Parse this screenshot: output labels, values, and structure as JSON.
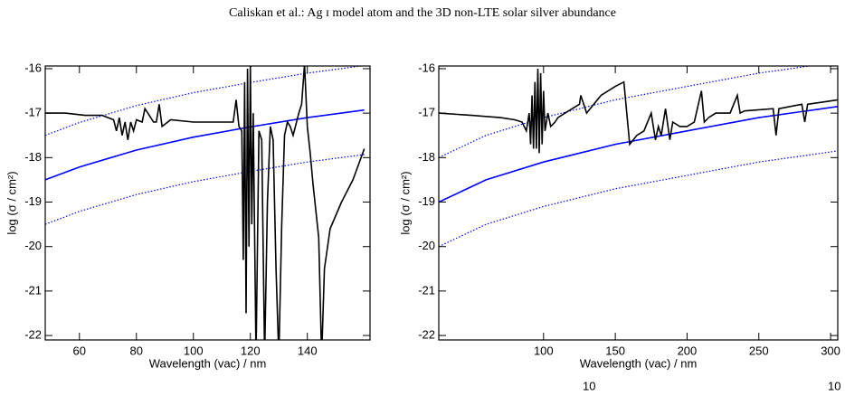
{
  "header": "Caliskan et al.: Ag ɪ model atom and the 3D non-LTE solar silver abundance",
  "page_fragments": [
    "10",
    "10"
  ],
  "chart_data": [
    {
      "type": "line",
      "xlabel": "Wavelength (vac) / nm",
      "ylabel": "log (σ / cm²)",
      "xlim": [
        48,
        162
      ],
      "ylim": [
        -22.1,
        -15.94
      ],
      "xticks": [
        60,
        80,
        100,
        120,
        140
      ],
      "yticks": [
        -16,
        -17,
        -18,
        -19,
        -20,
        -21,
        -22
      ],
      "series": [
        {
          "color": "#0000ff",
          "style": "dotted",
          "x": [
            48,
            60,
            80,
            100,
            120,
            140,
            160
          ],
          "values": [
            -17.5,
            -17.21,
            -16.83,
            -16.54,
            -16.31,
            -16.1,
            -15.93
          ]
        },
        {
          "color": "#0000ff",
          "style": "dotted",
          "x": [
            48,
            60,
            80,
            100,
            120,
            140,
            160
          ],
          "values": [
            -19.5,
            -19.21,
            -18.83,
            -18.54,
            -18.31,
            -18.1,
            -17.93
          ]
        },
        {
          "color": "#0000ff",
          "style": "solid",
          "x": [
            48,
            60,
            80,
            100,
            120,
            140,
            160
          ],
          "values": [
            -18.5,
            -18.21,
            -17.83,
            -17.54,
            -17.31,
            -17.1,
            -16.93
          ]
        },
        {
          "color": "#000000",
          "style": "solid",
          "x": [
            48,
            55,
            62,
            68,
            72,
            73,
            74,
            75,
            76,
            77,
            78,
            79,
            80,
            82,
            83,
            84,
            86,
            87,
            88,
            89,
            92,
            100,
            110,
            114,
            115,
            116,
            117,
            117.5,
            118,
            118.5,
            119,
            119.5,
            120,
            120.5,
            121,
            122,
            123,
            124,
            125,
            126,
            127,
            128,
            129,
            130,
            131,
            132,
            133,
            134,
            135,
            137,
            138,
            139,
            140,
            141,
            142,
            144,
            145,
            146,
            148,
            152,
            156,
            160
          ],
          "values": [
            -17,
            -17,
            -17.05,
            -17.05,
            -17.15,
            -17.4,
            -17.1,
            -17.5,
            -17.2,
            -17.6,
            -17.2,
            -17.4,
            -17.15,
            -17.2,
            -16.9,
            -17.0,
            -17.2,
            -17.2,
            -16.8,
            -17.3,
            -17.15,
            -17.2,
            -17.2,
            -17.2,
            -16.7,
            -17.3,
            -17.4,
            -20.3,
            -16.3,
            -21.5,
            -16.0,
            -20.0,
            -15.9,
            -19.5,
            -17.0,
            -22.5,
            -17.4,
            -17.6,
            -22.5,
            -19.0,
            -17.3,
            -17.6,
            -20.5,
            -22.5,
            -19.5,
            -17.5,
            -17.2,
            -17.3,
            -17.5,
            -17.0,
            -16.8,
            -15.9,
            -17.3,
            -17.9,
            -18.6,
            -19.8,
            -22.5,
            -20.5,
            -19.6,
            -19.0,
            -18.5,
            -17.8
          ]
        }
      ]
    },
    {
      "type": "line",
      "xlabel": "Wavelength (vac) / nm",
      "ylabel": "log (σ / cm²)",
      "xlim": [
        27,
        305
      ],
      "ylim": [
        -22.1,
        -15.94
      ],
      "xticks": [
        100,
        150,
        200,
        250,
        300
      ],
      "yticks": [
        -16,
        -17,
        -18,
        -19,
        -20,
        -21,
        -22
      ],
      "series": [
        {
          "color": "#0000ff",
          "style": "dotted",
          "x": [
            27,
            60,
            100,
            150,
            200,
            250,
            305
          ],
          "values": [
            -18,
            -17.5,
            -17.1,
            -16.7,
            -16.4,
            -16.1,
            -15.85
          ]
        },
        {
          "color": "#0000ff",
          "style": "dotted",
          "x": [
            27,
            60,
            100,
            150,
            200,
            250,
            305
          ],
          "values": [
            -20,
            -19.5,
            -19.1,
            -18.7,
            -18.4,
            -18.1,
            -17.85
          ]
        },
        {
          "color": "#0000ff",
          "style": "solid",
          "x": [
            27,
            60,
            100,
            150,
            200,
            250,
            305
          ],
          "values": [
            -19,
            -18.5,
            -18.1,
            -17.7,
            -17.4,
            -17.1,
            -16.85
          ]
        },
        {
          "color": "#000000",
          "style": "solid",
          "x": [
            27,
            50,
            70,
            80,
            85,
            88,
            90,
            91,
            92,
            93,
            94,
            95,
            96,
            97,
            98,
            99,
            100,
            101,
            103,
            105,
            108,
            110,
            115,
            120,
            125,
            126,
            130,
            140,
            150,
            156,
            160,
            165,
            170,
            175,
            178,
            180,
            182,
            185,
            188,
            190,
            195,
            200,
            205,
            210,
            212,
            215,
            220,
            225,
            230,
            235,
            237,
            240,
            260,
            262,
            264,
            280,
            282,
            284,
            295,
            305
          ],
          "values": [
            -17,
            -17.05,
            -17.1,
            -17.15,
            -17.2,
            -17.4,
            -17.0,
            -17.7,
            -16.6,
            -17.8,
            -16.3,
            -17.8,
            -16.0,
            -17.9,
            -16.1,
            -17.7,
            -16.5,
            -17.4,
            -17.0,
            -17.3,
            -17.2,
            -17.1,
            -17.0,
            -16.9,
            -16.8,
            -16.6,
            -17.0,
            -16.6,
            -16.4,
            -16.3,
            -17.7,
            -17.5,
            -17.4,
            -17.0,
            -17.6,
            -17.3,
            -17.5,
            -16.9,
            -17.6,
            -17.2,
            -17.3,
            -17.3,
            -17.2,
            -16.5,
            -17.2,
            -17.1,
            -17.0,
            -17.0,
            -17.0,
            -16.6,
            -17.0,
            -16.95,
            -16.9,
            -17.5,
            -16.9,
            -16.8,
            -17.2,
            -16.8,
            -16.75,
            -16.7
          ]
        }
      ]
    }
  ]
}
